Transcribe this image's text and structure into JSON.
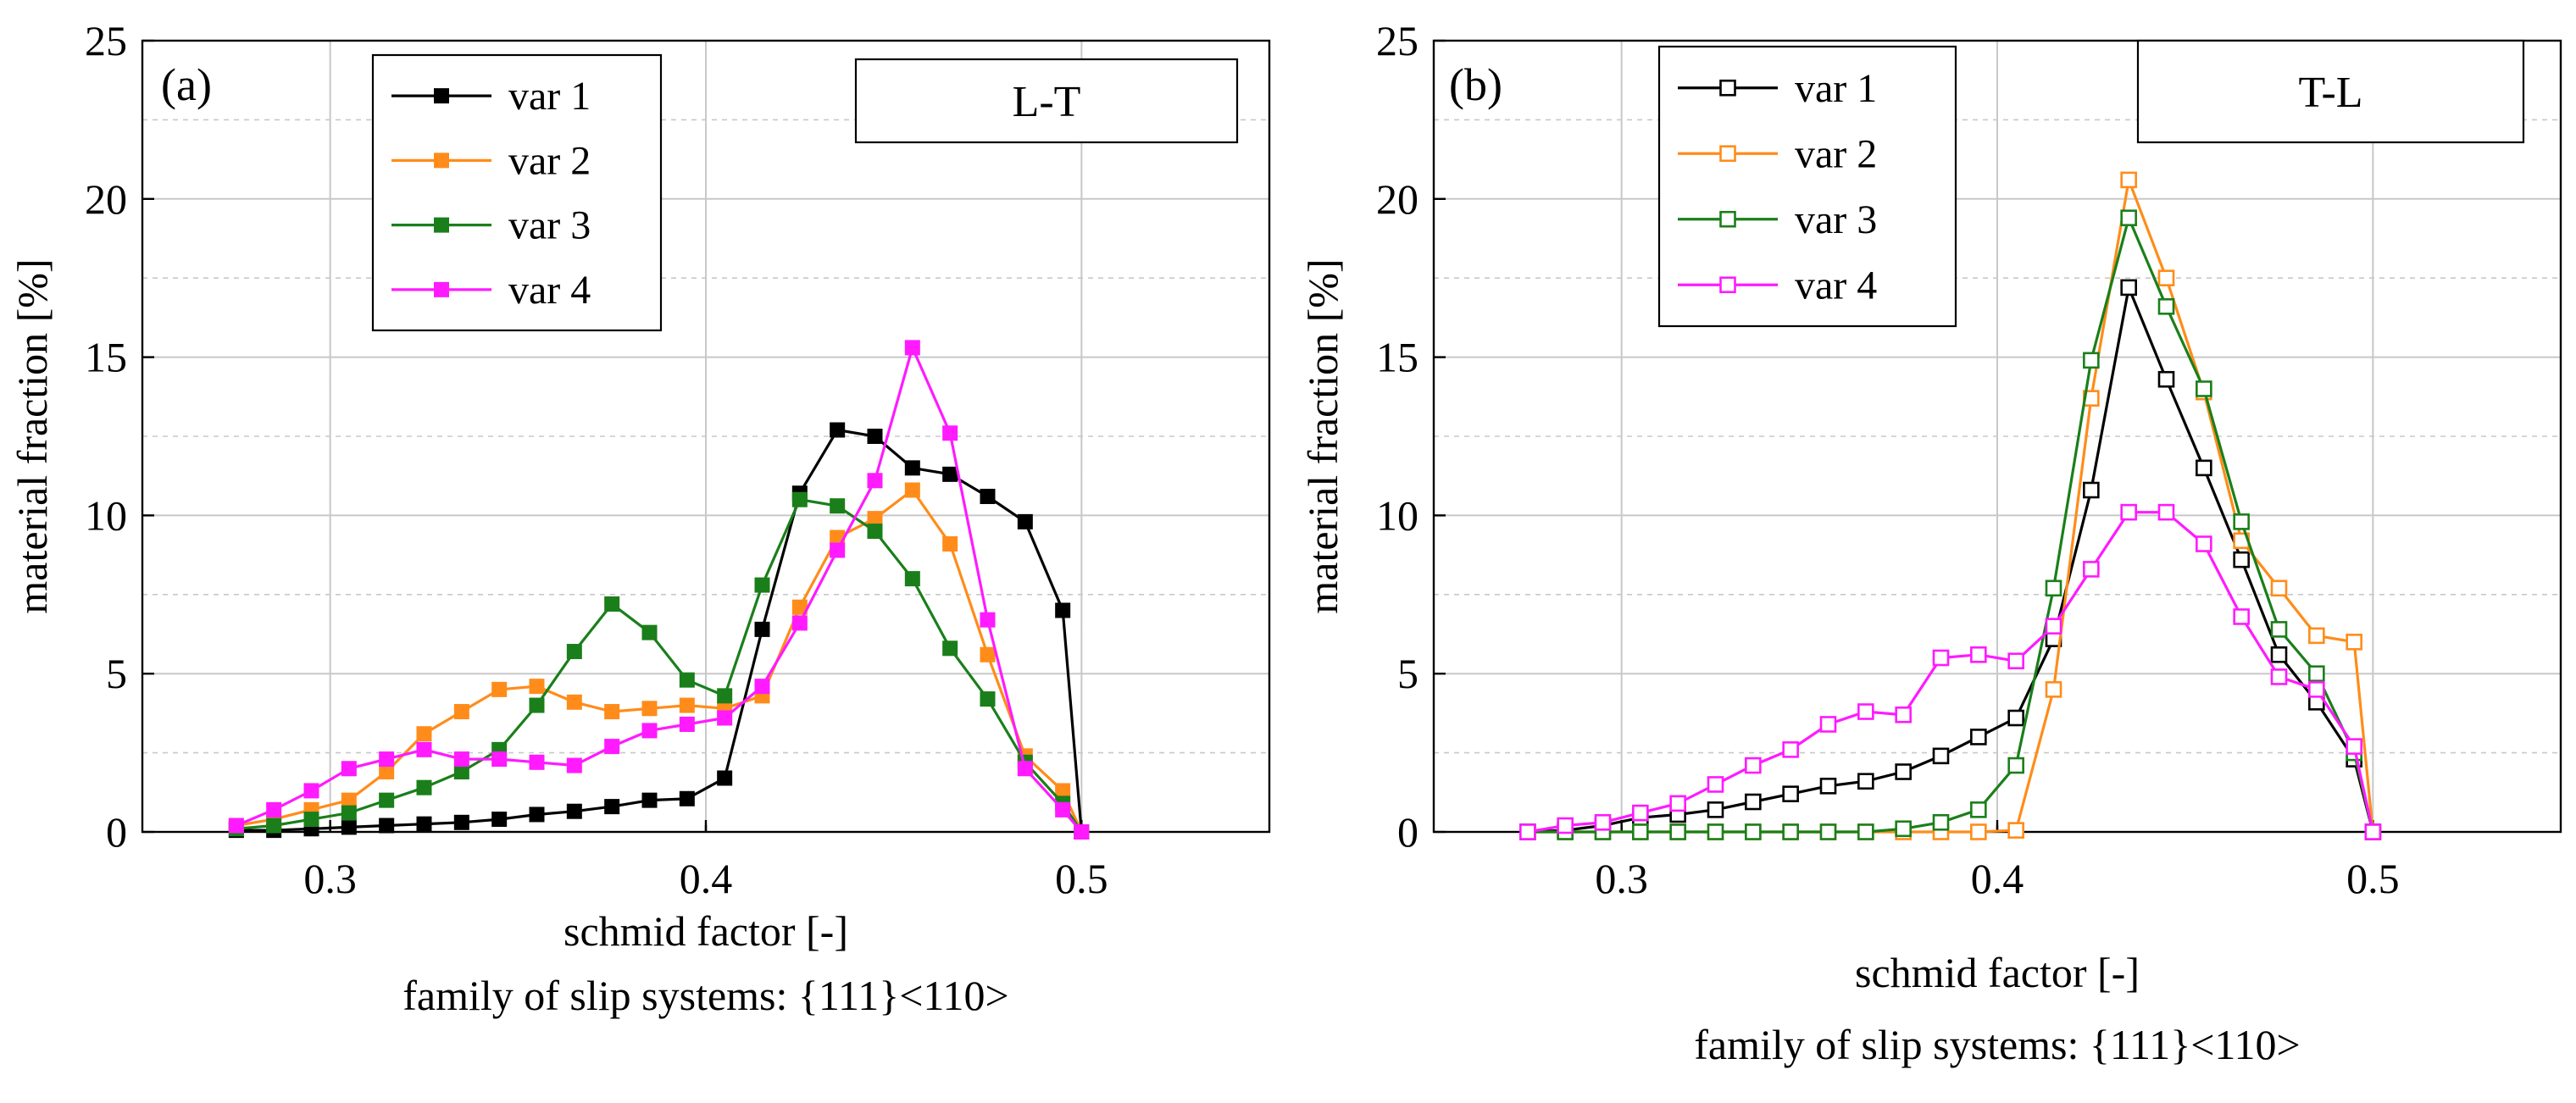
{
  "chart_data": [
    {
      "type": "line",
      "panel_label": "(a)",
      "orientation_label": "L-T",
      "xlabel": "schmid factor [-]",
      "xlabel_sub": "family of slip systems: {111}<110>",
      "ylabel": "material fraction [%]",
      "xlim": [
        0.25,
        0.55
      ],
      "ylim": [
        0,
        25
      ],
      "xticks": [
        "0.3",
        "0.4",
        "0.5"
      ],
      "yticks": [
        "0",
        "5",
        "10",
        "15",
        "20",
        "25"
      ],
      "marker": "filled-square",
      "legend_position": "top-left",
      "x": [
        0.275,
        0.285,
        0.295,
        0.305,
        0.315,
        0.325,
        0.335,
        0.345,
        0.355,
        0.365,
        0.375,
        0.385,
        0.395,
        0.405,
        0.415,
        0.425,
        0.435,
        0.445,
        0.455,
        0.465,
        0.475,
        0.485,
        0.495,
        0.5
      ],
      "series": [
        {
          "name": "var 1",
          "color": "#000000",
          "values": [
            0.05,
            0.05,
            0.1,
            0.15,
            0.2,
            0.25,
            0.3,
            0.4,
            0.55,
            0.65,
            0.8,
            1.0,
            1.05,
            1.7,
            6.4,
            10.7,
            12.7,
            12.5,
            11.5,
            11.3,
            10.6,
            9.8,
            7.0,
            0.0
          ]
        },
        {
          "name": "var 2",
          "color": "#ff8c1a",
          "values": [
            0.2,
            0.4,
            0.7,
            1.0,
            1.9,
            3.1,
            3.8,
            4.5,
            4.6,
            4.1,
            3.8,
            3.9,
            4.0,
            3.9,
            4.3,
            7.1,
            9.3,
            9.9,
            10.8,
            9.1,
            5.6,
            2.4,
            1.3,
            0.0
          ]
        },
        {
          "name": "var 3",
          "color": "#1a7f1a",
          "values": [
            0.1,
            0.2,
            0.4,
            0.6,
            1.0,
            1.4,
            1.9,
            2.6,
            4.0,
            5.7,
            7.2,
            6.3,
            4.8,
            4.3,
            7.8,
            10.5,
            10.3,
            9.5,
            8.0,
            5.8,
            4.2,
            2.2,
            0.9,
            0.0
          ]
        },
        {
          "name": "var 4",
          "color": "#ff1aff",
          "values": [
            0.2,
            0.7,
            1.3,
            2.0,
            2.3,
            2.6,
            2.3,
            2.3,
            2.2,
            2.1,
            2.7,
            3.2,
            3.4,
            3.6,
            4.6,
            6.6,
            8.9,
            11.1,
            15.3,
            12.6,
            6.7,
            2.0,
            0.7,
            0.0
          ]
        }
      ]
    },
    {
      "type": "line",
      "panel_label": "(b)",
      "orientation_label": "T-L",
      "xlabel": "schmid factor [-]",
      "xlabel_sub": "family of slip systems: {111}<110>",
      "ylabel": "material fraction [%]",
      "xlim": [
        0.25,
        0.55
      ],
      "ylim": [
        0,
        25
      ],
      "xticks": [
        "0.3",
        "0.4",
        "0.5"
      ],
      "yticks": [
        "0",
        "5",
        "10",
        "15",
        "20",
        "25"
      ],
      "marker": "open-square",
      "legend_position": "top-left",
      "x": [
        0.275,
        0.285,
        0.295,
        0.305,
        0.315,
        0.325,
        0.335,
        0.345,
        0.355,
        0.365,
        0.375,
        0.385,
        0.395,
        0.405,
        0.415,
        0.425,
        0.435,
        0.445,
        0.455,
        0.465,
        0.475,
        0.485,
        0.495,
        0.5
      ],
      "series": [
        {
          "name": "var 1",
          "color": "#000000",
          "values": [
            0.0,
            0.05,
            0.2,
            0.45,
            0.55,
            0.7,
            0.95,
            1.2,
            1.45,
            1.6,
            1.9,
            2.4,
            3.0,
            3.6,
            6.1,
            10.8,
            17.2,
            14.3,
            11.5,
            8.6,
            5.6,
            4.1,
            2.3,
            0.0
          ]
        },
        {
          "name": "var 2",
          "color": "#ff8c1a",
          "values": [
            0.0,
            0.0,
            0.0,
            0.0,
            0.0,
            0.0,
            0.0,
            0.0,
            0.0,
            0.0,
            0.0,
            0.0,
            0.0,
            0.05,
            4.5,
            13.7,
            20.6,
            17.5,
            13.9,
            9.2,
            7.7,
            6.2,
            6.0,
            0.0
          ]
        },
        {
          "name": "var 3",
          "color": "#1a7f1a",
          "values": [
            0.0,
            0.0,
            0.0,
            0.0,
            0.0,
            0.0,
            0.0,
            0.0,
            0.0,
            0.0,
            0.1,
            0.3,
            0.7,
            2.1,
            7.7,
            14.9,
            19.4,
            16.6,
            14.0,
            9.8,
            6.4,
            5.0,
            2.5,
            0.0
          ]
        },
        {
          "name": "var 4",
          "color": "#ff1aff",
          "values": [
            0.0,
            0.2,
            0.3,
            0.6,
            0.9,
            1.5,
            2.1,
            2.6,
            3.4,
            3.8,
            3.7,
            5.5,
            5.6,
            5.4,
            6.5,
            8.3,
            10.1,
            10.1,
            9.1,
            6.8,
            4.9,
            4.5,
            2.7,
            0.0
          ]
        }
      ]
    }
  ]
}
